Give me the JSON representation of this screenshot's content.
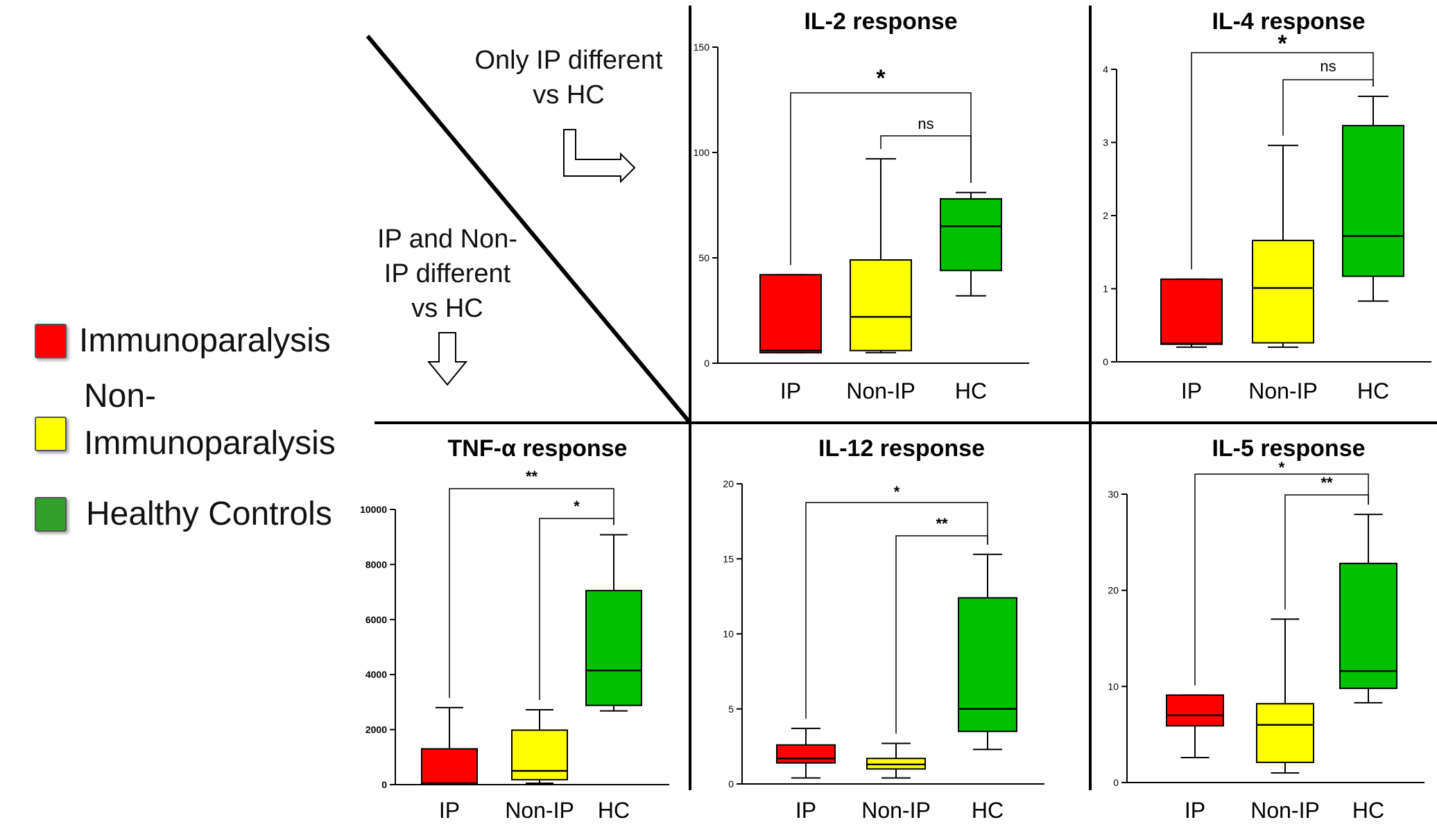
{
  "legend": {
    "items": [
      {
        "label_line1": "Immunoparalysis",
        "label_line2": "",
        "color": "#ff0000"
      },
      {
        "label_line1": "Non-",
        "label_line2": "Immunoparalysis",
        "color": "#ffff00"
      },
      {
        "label_line1": "Healthy Controls",
        "label_line2": "",
        "color": "#33a02c"
      }
    ]
  },
  "annotations": {
    "top_line1": "Only IP different",
    "top_line2": "vs HC",
    "bottom_line1": "IP and Non-",
    "bottom_line2": "IP different",
    "bottom_line3": "vs HC"
  },
  "chart_data": [
    {
      "type": "boxplot",
      "title": "IL-2 response",
      "categories": [
        "IP",
        "Non-IP",
        "HC"
      ],
      "colors": [
        "#ff0000",
        "#ffff00",
        "#00c000"
      ],
      "ylim": [
        0,
        150
      ],
      "yticks": [
        0,
        50,
        100,
        150
      ],
      "boxes": [
        {
          "min": 5,
          "q1": 5,
          "median": 6,
          "q3": 42,
          "max": 42
        },
        {
          "min": 5,
          "q1": 6,
          "median": 22,
          "q3": 49,
          "max": 97
        },
        {
          "min": 32,
          "q1": 44,
          "median": 65,
          "q3": 78,
          "max": 81
        }
      ],
      "brackets": [
        {
          "from": 0,
          "to": 2,
          "label": "*"
        },
        {
          "from": 1,
          "to": 2,
          "label": "ns"
        }
      ]
    },
    {
      "type": "boxplot",
      "title": "IL-4 response",
      "categories": [
        "IP",
        "Non-IP",
        "HC"
      ],
      "colors": [
        "#ff0000",
        "#ffff00",
        "#00c000"
      ],
      "ylim": [
        0,
        4
      ],
      "yticks": [
        0,
        1,
        2,
        3,
        4
      ],
      "boxes": [
        {
          "min": 0.2,
          "q1": 0.24,
          "median": 0.25,
          "q3": 1.13,
          "max": 1.13
        },
        {
          "min": 0.2,
          "q1": 0.26,
          "median": 1.01,
          "q3": 1.66,
          "max": 2.96
        },
        {
          "min": 0.83,
          "q1": 1.17,
          "median": 1.72,
          "q3": 3.23,
          "max": 3.63
        }
      ],
      "brackets": [
        {
          "from": 0,
          "to": 2,
          "label": "*"
        },
        {
          "from": 1,
          "to": 2,
          "label": "ns"
        }
      ]
    },
    {
      "type": "boxplot",
      "title": "TNF-α response",
      "categories": [
        "IP",
        "Non-IP",
        "HC"
      ],
      "colors": [
        "#ff0000",
        "#ffff00",
        "#00c000"
      ],
      "ylim": [
        0,
        10000
      ],
      "yticks": [
        0,
        2000,
        4000,
        6000,
        8000,
        10000
      ],
      "boxes": [
        {
          "min": 0,
          "q1": 20,
          "median": 50,
          "q3": 1300,
          "max": 2800
        },
        {
          "min": 50,
          "q1": 180,
          "median": 500,
          "q3": 1980,
          "max": 2720
        },
        {
          "min": 2680,
          "q1": 2880,
          "median": 4150,
          "q3": 7050,
          "max": 9080
        }
      ],
      "brackets": [
        {
          "from": 0,
          "to": 2,
          "label": "**"
        },
        {
          "from": 1,
          "to": 2,
          "label": "*"
        }
      ]
    },
    {
      "type": "boxplot",
      "title": "IL-12 response",
      "categories": [
        "IP",
        "Non-IP",
        "HC"
      ],
      "colors": [
        "#ff0000",
        "#ffff00",
        "#00c000"
      ],
      "ylim": [
        0,
        20
      ],
      "yticks": [
        0,
        5,
        10,
        15,
        20
      ],
      "boxes": [
        {
          "min": 0.4,
          "q1": 1.4,
          "median": 1.7,
          "q3": 2.6,
          "max": 3.7
        },
        {
          "min": 0.4,
          "q1": 1.0,
          "median": 1.3,
          "q3": 1.7,
          "max": 2.7
        },
        {
          "min": 2.3,
          "q1": 3.5,
          "median": 5.0,
          "q3": 12.4,
          "max": 15.3
        }
      ],
      "brackets": [
        {
          "from": 0,
          "to": 2,
          "label": "*"
        },
        {
          "from": 1,
          "to": 2,
          "label": "**"
        }
      ]
    },
    {
      "type": "boxplot",
      "title": "IL-5 response",
      "categories": [
        "IP",
        "Non-IP",
        "HC"
      ],
      "colors": [
        "#ff0000",
        "#ffff00",
        "#00c000"
      ],
      "ylim": [
        0,
        30
      ],
      "yticks": [
        0,
        10,
        20,
        30
      ],
      "boxes": [
        {
          "min": 2.6,
          "q1": 5.9,
          "median": 7.0,
          "q3": 9.1,
          "max": 9.1
        },
        {
          "min": 1.0,
          "q1": 2.1,
          "median": 6.0,
          "q3": 8.2,
          "max": 17.0
        },
        {
          "min": 8.3,
          "q1": 9.8,
          "median": 11.6,
          "q3": 22.8,
          "max": 27.9
        }
      ],
      "brackets": [
        {
          "from": 0,
          "to": 2,
          "label": "*"
        },
        {
          "from": 1,
          "to": 2,
          "label": "**"
        }
      ]
    }
  ]
}
